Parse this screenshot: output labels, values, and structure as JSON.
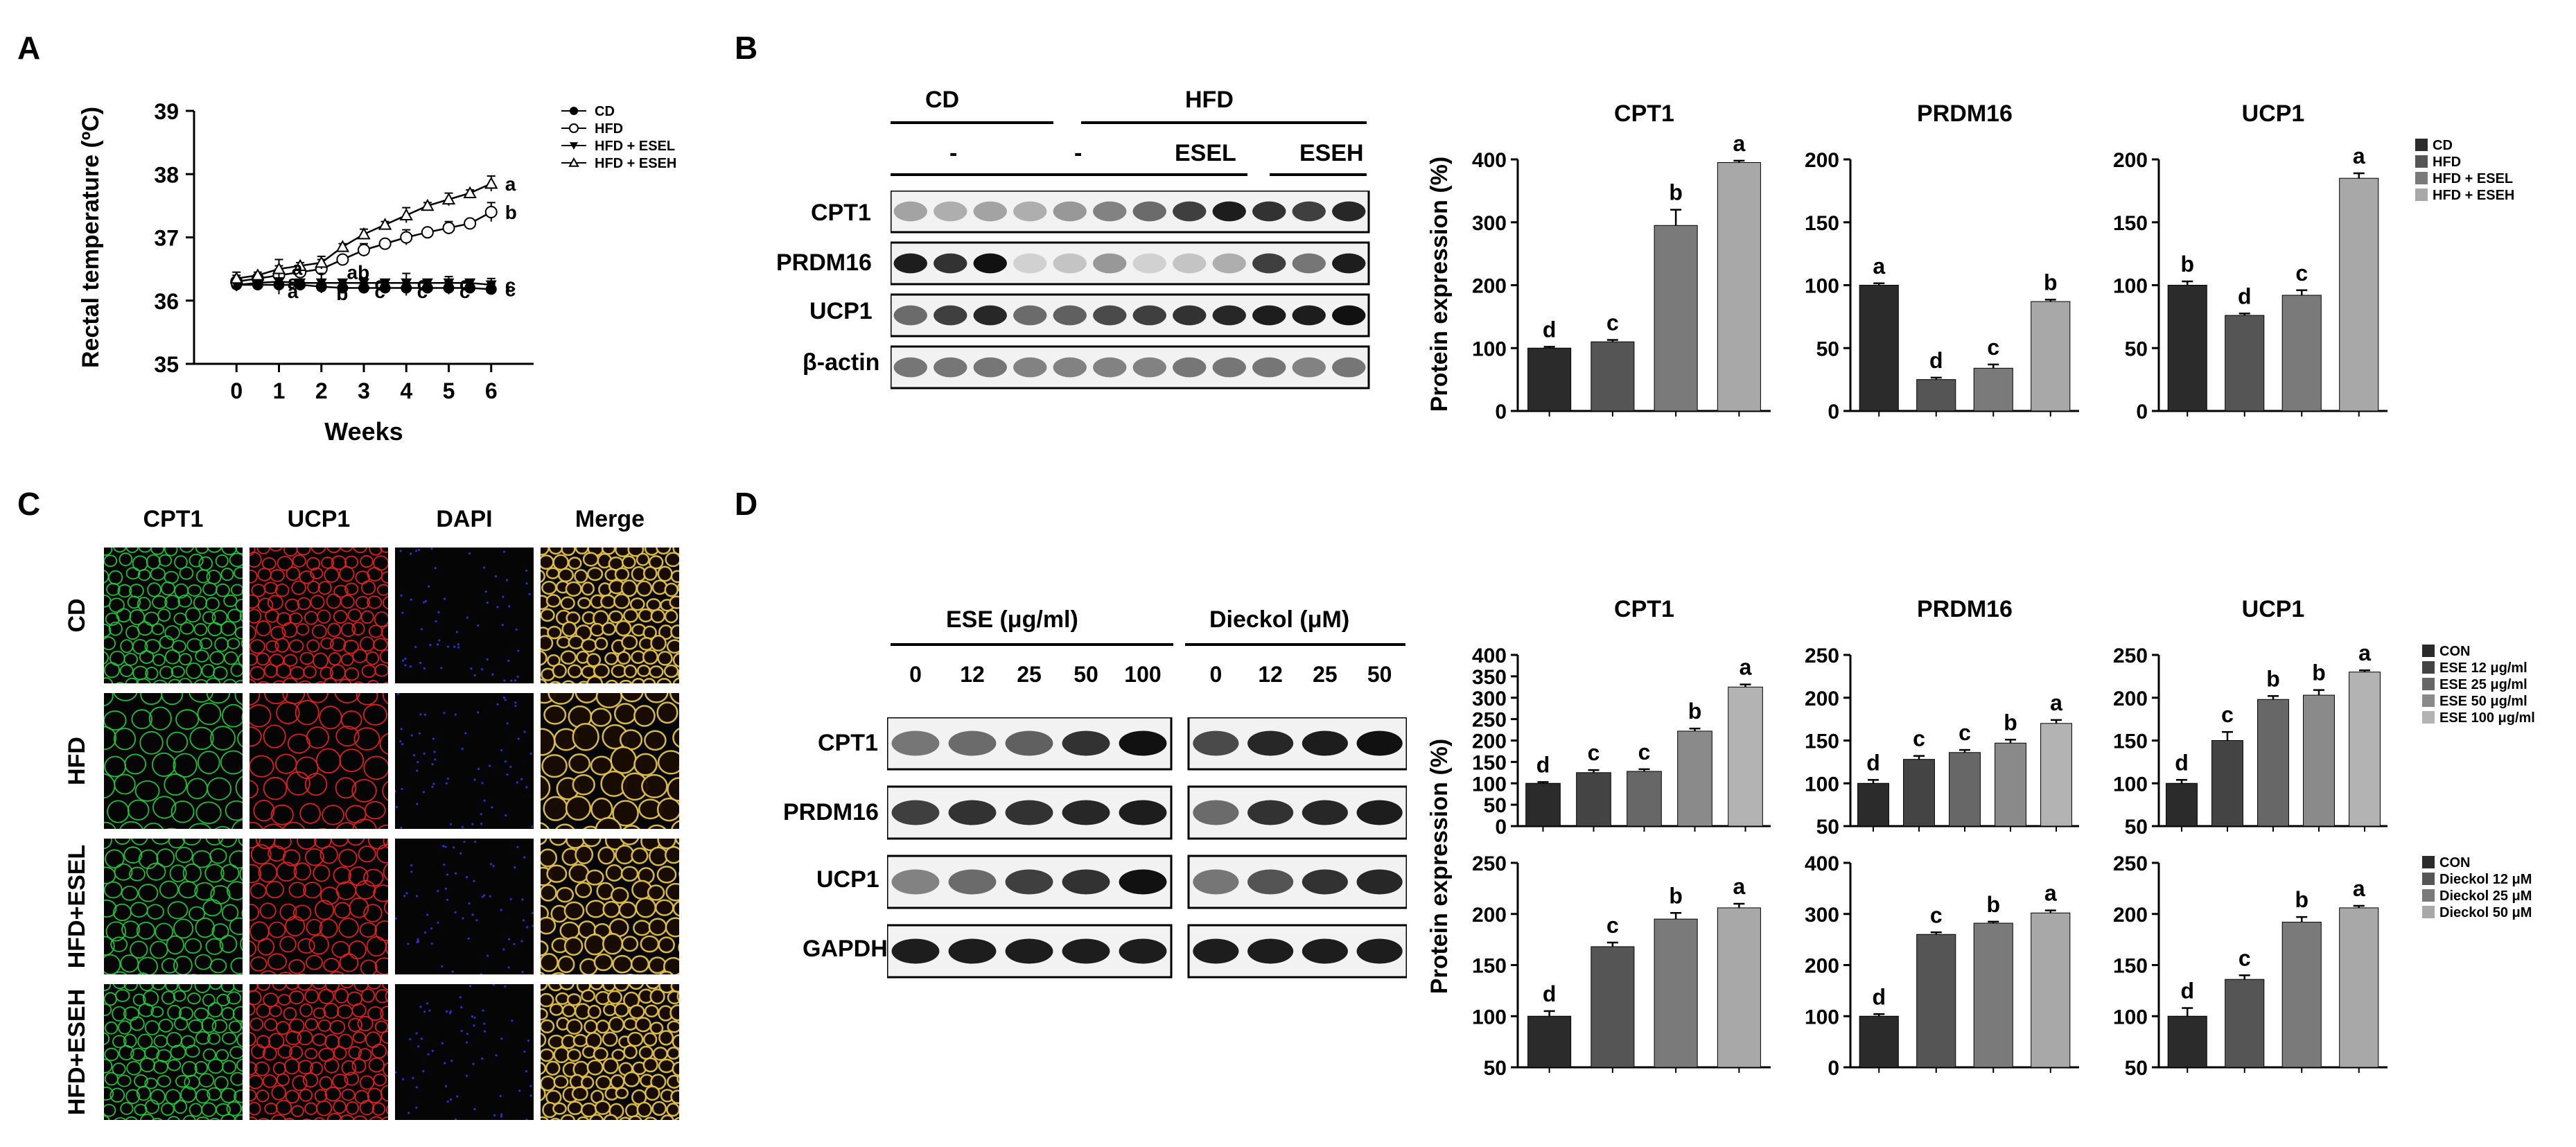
{
  "panels": {
    "A": {
      "letter": "A",
      "chart_data": {
        "type": "line",
        "xlabel": "Weeks",
        "ylabel": "Rectal temperature (ºC)",
        "x": [
          0,
          1,
          2,
          3,
          4,
          5,
          6
        ],
        "xticks": [
          "0",
          "1",
          "2",
          "3",
          "4",
          "5",
          "6"
        ],
        "yticks": [
          "35",
          "36",
          "37",
          "38",
          "39"
        ],
        "ylim": [
          35,
          39
        ],
        "xlim": [
          -1,
          7
        ],
        "legend_position": "right",
        "series": [
          {
            "name": "CD",
            "marker": "filled-circle",
            "x": [
              0,
              0.5,
              1,
              1.5,
              2,
              2.5,
              3,
              3.5,
              4,
              4.5,
              5,
              5.5,
              6
            ],
            "values": [
              36.25,
              36.25,
              36.25,
              36.25,
              36.22,
              36.2,
              36.2,
              36.2,
              36.2,
              36.2,
              36.2,
              36.2,
              36.18
            ],
            "errors": [
              0.1,
              0.05,
              0.1,
              0.05,
              0.1,
              0.05,
              0.08,
              0.05,
              0.12,
              0.05,
              0.1,
              0.05,
              0.08
            ],
            "end_letter": "c"
          },
          {
            "name": "HFD",
            "marker": "open-circle",
            "x": [
              0,
              0.5,
              1,
              1.5,
              2,
              2.5,
              3,
              3.5,
              4,
              4.5,
              5,
              5.5,
              6
            ],
            "values": [
              36.3,
              36.35,
              36.4,
              36.45,
              36.5,
              36.65,
              36.8,
              36.9,
              37.0,
              37.08,
              37.15,
              37.22,
              37.4
            ],
            "errors": [
              0.1,
              0.05,
              0.15,
              0.05,
              0.15,
              0.05,
              0.1,
              0.05,
              0.12,
              0.05,
              0.1,
              0.05,
              0.15
            ],
            "end_letter": "b"
          },
          {
            "name": "HFD + ESEL",
            "marker": "filled-triangle-down",
            "x": [
              0,
              0.5,
              1,
              1.5,
              2,
              2.5,
              3,
              3.5,
              4,
              4.5,
              5,
              5.5,
              6
            ],
            "values": [
              36.25,
              36.28,
              36.3,
              36.28,
              36.28,
              36.28,
              36.28,
              36.28,
              36.28,
              36.28,
              36.28,
              36.28,
              36.25
            ],
            "errors": [
              0.1,
              0.05,
              0.2,
              0.05,
              0.15,
              0.05,
              0.08,
              0.05,
              0.15,
              0.05,
              0.1,
              0.05,
              0.1
            ],
            "end_letter": "c"
          },
          {
            "name": "HFD + ESEH",
            "marker": "open-triangle-up",
            "x": [
              0,
              0.5,
              1,
              1.5,
              2,
              2.5,
              3,
              3.5,
              4,
              4.5,
              5,
              5.5,
              6
            ],
            "values": [
              36.35,
              36.4,
              36.5,
              36.55,
              36.6,
              36.85,
              37.05,
              37.2,
              37.35,
              37.5,
              37.6,
              37.7,
              37.85
            ],
            "errors": [
              0.1,
              0.05,
              0.15,
              0.05,
              0.1,
              0.05,
              0.08,
              0.05,
              0.12,
              0.05,
              0.1,
              0.05,
              0.12
            ],
            "end_letter": "a"
          }
        ],
        "annotations": [
          {
            "text": "a",
            "x": 1.3,
            "y": 36.52
          },
          {
            "text": "a",
            "x": 1.2,
            "y": 36.3
          },
          {
            "text": "a",
            "x": 1.2,
            "y": 36.15
          },
          {
            "text": "ab",
            "x": 2.6,
            "y": 36.45
          },
          {
            "text": "b",
            "x": 2.35,
            "y": 36.12
          },
          {
            "text": "c",
            "x": 3.25,
            "y": 36.27
          },
          {
            "text": "c",
            "x": 3.25,
            "y": 36.15
          },
          {
            "text": "c",
            "x": 4.25,
            "y": 36.27
          },
          {
            "text": "c",
            "x": 4.25,
            "y": 36.15
          },
          {
            "text": "c",
            "x": 5.25,
            "y": 36.27
          },
          {
            "text": "c",
            "x": 5.25,
            "y": 36.15
          }
        ]
      }
    },
    "B": {
      "letter": "B",
      "blot": {
        "group_top": [
          "CD",
          "HFD"
        ],
        "group_sub": [
          "-",
          "-",
          "ESEL",
          "ESEH"
        ],
        "rows": [
          "CPT1",
          "PRDM16",
          "UCP1",
          "β-actin"
        ]
      },
      "legend": [
        "CD",
        "HFD",
        "HFD + ESEL",
        "HFD + ESEH"
      ],
      "ylabel": "Protein expression (%)",
      "chart_data": [
        {
          "type": "bar",
          "title": "CPT1",
          "categories": [
            "CD",
            "HFD",
            "HFD + ESEL",
            "HFD + ESEH"
          ],
          "values": [
            100,
            110,
            295,
            395
          ],
          "errors": [
            2,
            3,
            25,
            3
          ],
          "letters": [
            "d",
            "c",
            "b",
            "a"
          ],
          "ylim": [
            0,
            400
          ],
          "yticks": [
            "0",
            "100",
            "200",
            "300",
            "400"
          ]
        },
        {
          "type": "bar",
          "title": "PRDM16",
          "categories": [
            "CD",
            "HFD",
            "HFD + ESEL",
            "HFD + ESEH"
          ],
          "values": [
            100,
            25,
            34,
            87
          ],
          "errors": [
            1.5,
            1.5,
            3,
            1.5
          ],
          "letters": [
            "a",
            "d",
            "c",
            "b"
          ],
          "ylim": [
            0,
            200
          ],
          "yticks": [
            "0",
            "50",
            "100",
            "150",
            "200"
          ]
        },
        {
          "type": "bar",
          "title": "UCP1",
          "categories": [
            "CD",
            "HFD",
            "HFD + ESEL",
            "HFD + ESEH"
          ],
          "values": [
            100,
            76,
            92,
            185
          ],
          "errors": [
            3,
            1.5,
            4,
            4
          ],
          "letters": [
            "b",
            "d",
            "c",
            "a"
          ],
          "ylim": [
            0,
            200
          ],
          "yticks": [
            "0",
            "50",
            "100",
            "150",
            "200"
          ]
        }
      ]
    },
    "C": {
      "letter": "C",
      "columns": [
        "CPT1",
        "UCP1",
        "DAPI",
        "Merge"
      ],
      "rows": [
        "CD",
        "HFD",
        "HFD+ESEL",
        "HFD+ESEH"
      ]
    },
    "D": {
      "letter": "D",
      "blot": {
        "ese_label": "ESE (μg/ml)",
        "dieckol_label": "Dieckol (μM)",
        "ese_doses": [
          "0",
          "12",
          "25",
          "50",
          "100"
        ],
        "dieckol_doses": [
          "0",
          "12",
          "25",
          "50"
        ],
        "rows": [
          "CPT1",
          "PRDM16",
          "UCP1",
          "GAPDH"
        ]
      },
      "legend_top": [
        "CON",
        "ESE 12 μg/ml",
        "ESE 25 μg/ml",
        "ESE 50 μg/ml",
        "ESE 100 μg/ml"
      ],
      "legend_bottom": [
        "CON",
        "Dieckol 12 μM",
        "Dieckol 25 μM",
        "Dieckol 50 μM"
      ],
      "ylabel": "Protein expression (%)",
      "chart_data": [
        {
          "type": "bar",
          "title": "CPT1",
          "categories": [
            "CON",
            "ESE 12 μg/ml",
            "ESE 25 μg/ml",
            "ESE 50 μg/ml",
            "ESE 100 μg/ml"
          ],
          "values": [
            100,
            125,
            128,
            222,
            325
          ],
          "errors": [
            3,
            6,
            5,
            6,
            6
          ],
          "letters": [
            "d",
            "c",
            "c",
            "b",
            "a"
          ],
          "ylim": [
            0,
            400
          ],
          "yticks": [
            "0",
            "50",
            "100",
            "150",
            "200",
            "250",
            "300",
            "350",
            "400"
          ]
        },
        {
          "type": "bar",
          "title": "PRDM16",
          "categories": [
            "CON",
            "ESE 12 μg/ml",
            "ESE 25 μg/ml",
            "ESE 50 μg/ml",
            "ESE 100 μg/ml"
          ],
          "values": [
            100,
            128,
            136,
            147,
            170
          ],
          "errors": [
            4,
            4,
            3,
            4,
            4
          ],
          "letters": [
            "d",
            "c",
            "c",
            "b",
            "a"
          ],
          "ylim": [
            50,
            250
          ],
          "yticks": [
            "50",
            "100",
            "150",
            "200",
            "250"
          ]
        },
        {
          "type": "bar",
          "title": "UCP1",
          "categories": [
            "CON",
            "ESE 12 μg/ml",
            "ESE 25 μg/ml",
            "ESE 50 μg/ml",
            "ESE 100 μg/ml"
          ],
          "values": [
            100,
            150,
            198,
            203,
            230
          ],
          "errors": [
            4,
            10,
            4,
            6,
            2
          ],
          "letters": [
            "d",
            "c",
            "b",
            "b",
            "a"
          ],
          "ylim": [
            50,
            250
          ],
          "yticks": [
            "50",
            "100",
            "150",
            "200",
            "250"
          ]
        },
        {
          "type": "bar",
          "title": "",
          "categories": [
            "CON",
            "Dieckol 12 μM",
            "Dieckol 25 μM",
            "Dieckol 50 μM"
          ],
          "values": [
            100,
            168,
            195,
            206
          ],
          "errors": [
            5,
            4,
            6,
            4
          ],
          "letters": [
            "d",
            "c",
            "b",
            "a"
          ],
          "ylim": [
            50,
            250
          ],
          "yticks": [
            "50",
            "100",
            "150",
            "200",
            "250"
          ]
        },
        {
          "type": "bar",
          "title": "",
          "categories": [
            "CON",
            "Dieckol 12 μM",
            "Dieckol 25 μM",
            "Dieckol 50 μM"
          ],
          "values": [
            100,
            260,
            282,
            302
          ],
          "errors": [
            4,
            4,
            3,
            5
          ],
          "letters": [
            "d",
            "c",
            "b",
            "a"
          ],
          "ylim": [
            0,
            400
          ],
          "yticks": [
            "0",
            "100",
            "200",
            "300",
            "400"
          ]
        },
        {
          "type": "bar",
          "title": "",
          "categories": [
            "CON",
            "Dieckol 12 μM",
            "Dieckol 25 μM",
            "Dieckol 50 μM"
          ],
          "values": [
            100,
            136,
            192,
            206
          ],
          "errors": [
            8,
            4,
            5,
            2
          ],
          "letters": [
            "d",
            "c",
            "b",
            "a"
          ],
          "ylim": [
            50,
            250
          ],
          "yticks": [
            "50",
            "100",
            "150",
            "200",
            "250"
          ]
        }
      ]
    }
  },
  "colors": {
    "bar4": [
      "#2b2b2b",
      "#555555",
      "#7a7a7a",
      "#a8a8a8"
    ],
    "bar5": [
      "#2b2b2b",
      "#444444",
      "#676767",
      "#8a8a8a",
      "#b3b3b3"
    ],
    "green": "#22c83a",
    "red": "#e5221f",
    "blue": "#3a3aff",
    "merge": "#e2c24a"
  }
}
